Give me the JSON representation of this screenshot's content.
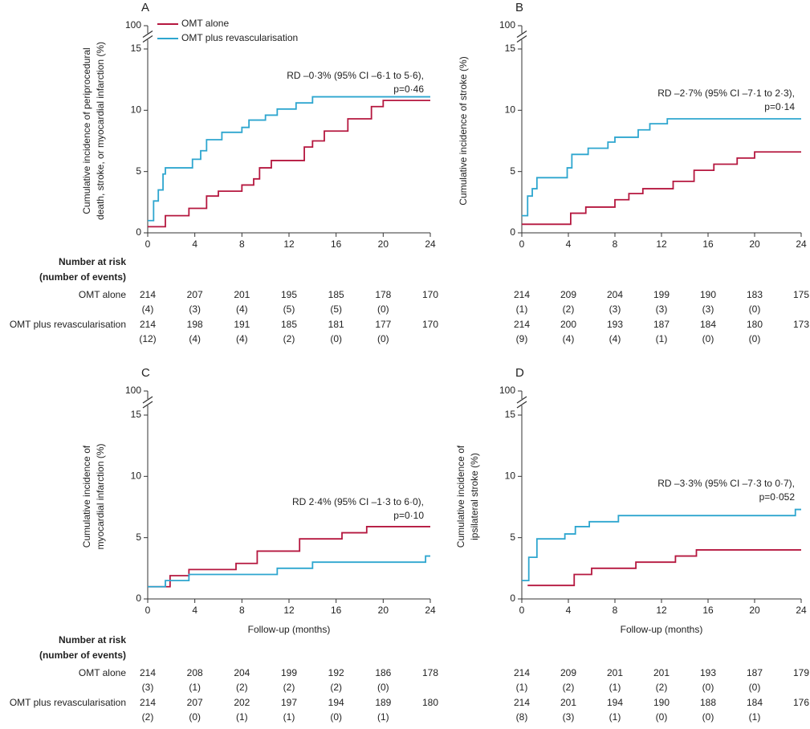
{
  "chart_data": [
    {
      "type": "line",
      "drawstyle": "steps-post",
      "panel": "A",
      "ylabel": [
        "Cumulative incidence of periprocedural",
        "death, stroke, or myocardial infarction (%)"
      ],
      "annotation": [
        "RD –0·3% (95% CI –6·1 to 5·6),",
        "p=0·46"
      ],
      "xlim": [
        0,
        24
      ],
      "xticks": [
        0,
        4,
        8,
        12,
        16,
        20,
        24
      ],
      "ylim": [
        0,
        15
      ],
      "yticks": [
        0,
        5,
        10,
        15,
        100
      ],
      "axis_break": true,
      "legend": "upper left",
      "series": [
        {
          "name": "OMT alone",
          "color": "#b5173f",
          "x": [
            0,
            1.5,
            3.5,
            5,
            6,
            8,
            9,
            9.5,
            10.5,
            13.3,
            14,
            15,
            17,
            19,
            20,
            24
          ],
          "values": [
            0.5,
            1.4,
            2.0,
            3.0,
            3.4,
            3.9,
            4.4,
            5.3,
            5.9,
            7.0,
            7.5,
            8.3,
            9.3,
            10.3,
            10.8,
            10.8
          ]
        },
        {
          "name": "OMT plus revascularisation",
          "color": "#2ea6cf",
          "x": [
            0,
            0.5,
            0.9,
            1.3,
            1.5,
            3.8,
            4.5,
            5,
            6.3,
            8,
            8.6,
            10,
            11,
            12.6,
            14,
            24
          ],
          "values": [
            1.0,
            2.6,
            3.5,
            4.8,
            5.3,
            6.0,
            6.7,
            7.6,
            8.2,
            8.6,
            9.2,
            9.6,
            10.1,
            10.6,
            11.1,
            11.1
          ]
        }
      ],
      "risk_table": {
        "title": [
          "Number at risk",
          "(number of events)"
        ],
        "rows": [
          {
            "label": "OMT alone",
            "at_risk": [
              214,
              207,
              201,
              195,
              185,
              178,
              170
            ],
            "events": [
              "(4)",
              "(3)",
              "(4)",
              "(5)",
              "(5)",
              "(0)"
            ]
          },
          {
            "label": "OMT plus revascularisation",
            "at_risk": [
              214,
              198,
              191,
              185,
              181,
              177,
              170
            ],
            "events": [
              "(12)",
              "(4)",
              "(4)",
              "(2)",
              "(0)",
              "(0)"
            ]
          }
        ]
      }
    },
    {
      "type": "line",
      "drawstyle": "steps-post",
      "panel": "B",
      "ylabel": [
        "Cumulative incidence of stroke (%)"
      ],
      "annotation": [
        "RD –2·7% (95% CI –7·1 to 2·3),",
        "p=0·14"
      ],
      "xlim": [
        0,
        24
      ],
      "xticks": [
        0,
        4,
        8,
        12,
        16,
        20,
        24
      ],
      "ylim": [
        0,
        15
      ],
      "yticks": [
        0,
        5,
        10,
        15,
        100
      ],
      "axis_break": true,
      "series": [
        {
          "color": "#b5173f",
          "x": [
            0,
            4.2,
            5.5,
            8,
            9.2,
            10.4,
            13,
            14.8,
            16.5,
            18.5,
            20,
            24
          ],
          "values": [
            0.7,
            1.6,
            2.1,
            2.7,
            3.2,
            3.6,
            4.2,
            5.1,
            5.6,
            6.1,
            6.6,
            6.6
          ]
        },
        {
          "color": "#2ea6cf",
          "x": [
            0,
            0.5,
            0.9,
            1.3,
            3.9,
            4.3,
            5.7,
            7.4,
            8,
            10,
            11,
            12.5,
            24
          ],
          "values": [
            1.4,
            3.0,
            3.6,
            4.5,
            5.3,
            6.4,
            6.9,
            7.4,
            7.8,
            8.4,
            8.9,
            9.3,
            9.3
          ]
        }
      ],
      "risk_table": {
        "rows": [
          {
            "at_risk": [
              214,
              209,
              204,
              199,
              190,
              183,
              175
            ],
            "events": [
              "(1)",
              "(2)",
              "(3)",
              "(3)",
              "(3)",
              "(0)"
            ]
          },
          {
            "at_risk": [
              214,
              200,
              193,
              187,
              184,
              180,
              173
            ],
            "events": [
              "(9)",
              "(4)",
              "(4)",
              "(1)",
              "(0)",
              "(0)"
            ]
          }
        ]
      }
    },
    {
      "type": "line",
      "drawstyle": "steps-post",
      "panel": "C",
      "ylabel": [
        "Cumulative incidence of",
        "myocardial infarction (%)"
      ],
      "xlabel": "Follow-up (months)",
      "annotation": [
        "RD 2·4% (95% CI –1·3 to 6·0),",
        "p=0·10"
      ],
      "xlim": [
        0,
        24
      ],
      "xticks": [
        0,
        4,
        8,
        12,
        16,
        20,
        24
      ],
      "ylim": [
        0,
        15
      ],
      "yticks": [
        0,
        5,
        10,
        15,
        100
      ],
      "axis_break": true,
      "series": [
        {
          "color": "#b5173f",
          "x": [
            0,
            1.9,
            3.5,
            7.5,
            9.3,
            12.9,
            16.5,
            18.6,
            24
          ],
          "values": [
            1.0,
            1.9,
            2.4,
            2.9,
            3.9,
            4.9,
            5.4,
            5.9,
            5.9
          ]
        },
        {
          "color": "#2ea6cf",
          "x": [
            0,
            1.5,
            3.5,
            11,
            14,
            23.6,
            24
          ],
          "values": [
            1.0,
            1.5,
            2.0,
            2.5,
            3.0,
            3.5,
            3.5
          ]
        }
      ],
      "risk_table": {
        "title": [
          "Number at risk",
          "(number of events)"
        ],
        "rows": [
          {
            "label": "OMT alone",
            "at_risk": [
              214,
              208,
              204,
              199,
              192,
              186,
              178
            ],
            "events": [
              "(3)",
              "(1)",
              "(2)",
              "(2)",
              "(2)",
              "(0)"
            ]
          },
          {
            "label": "OMT plus revascularisation",
            "at_risk": [
              214,
              207,
              202,
              197,
              194,
              189,
              180
            ],
            "events": [
              "(2)",
              "(0)",
              "(1)",
              "(1)",
              "(0)",
              "(1)"
            ]
          }
        ]
      }
    },
    {
      "type": "line",
      "drawstyle": "steps-post",
      "panel": "D",
      "ylabel": [
        "Cumulative incidence of",
        "ipsilateral stroke (%)"
      ],
      "xlabel": "Follow-up (months)",
      "annotation": [
        "RD –3·3% (95% CI –7·3 to 0·7),",
        "p=0·052"
      ],
      "xlim": [
        0,
        24
      ],
      "xticks": [
        0,
        4,
        8,
        12,
        16,
        20,
        24
      ],
      "ylim": [
        0,
        15
      ],
      "yticks": [
        0,
        5,
        10,
        15,
        100
      ],
      "axis_break": true,
      "series": [
        {
          "color": "#b5173f",
          "x": [
            0.5,
            4.5,
            6,
            9.8,
            13.2,
            15,
            24
          ],
          "values": [
            1.1,
            2.0,
            2.5,
            3.0,
            3.5,
            4.0,
            4.0
          ]
        },
        {
          "color": "#2ea6cf",
          "x": [
            0,
            0.6,
            1.3,
            3.7,
            4.6,
            5.8,
            8.3,
            23.5,
            24
          ],
          "values": [
            1.5,
            3.4,
            4.9,
            5.3,
            5.9,
            6.3,
            6.8,
            7.3,
            7.3
          ]
        }
      ],
      "risk_table": {
        "rows": [
          {
            "at_risk": [
              214,
              209,
              201,
              201,
              193,
              187,
              179
            ],
            "events": [
              "(1)",
              "(2)",
              "(1)",
              "(2)",
              "(0)",
              "(0)"
            ]
          },
          {
            "at_risk": [
              214,
              201,
              194,
              190,
              188,
              184,
              176
            ],
            "events": [
              "(8)",
              "(3)",
              "(1)",
              "(0)",
              "(0)",
              "(1)"
            ]
          }
        ]
      }
    }
  ]
}
